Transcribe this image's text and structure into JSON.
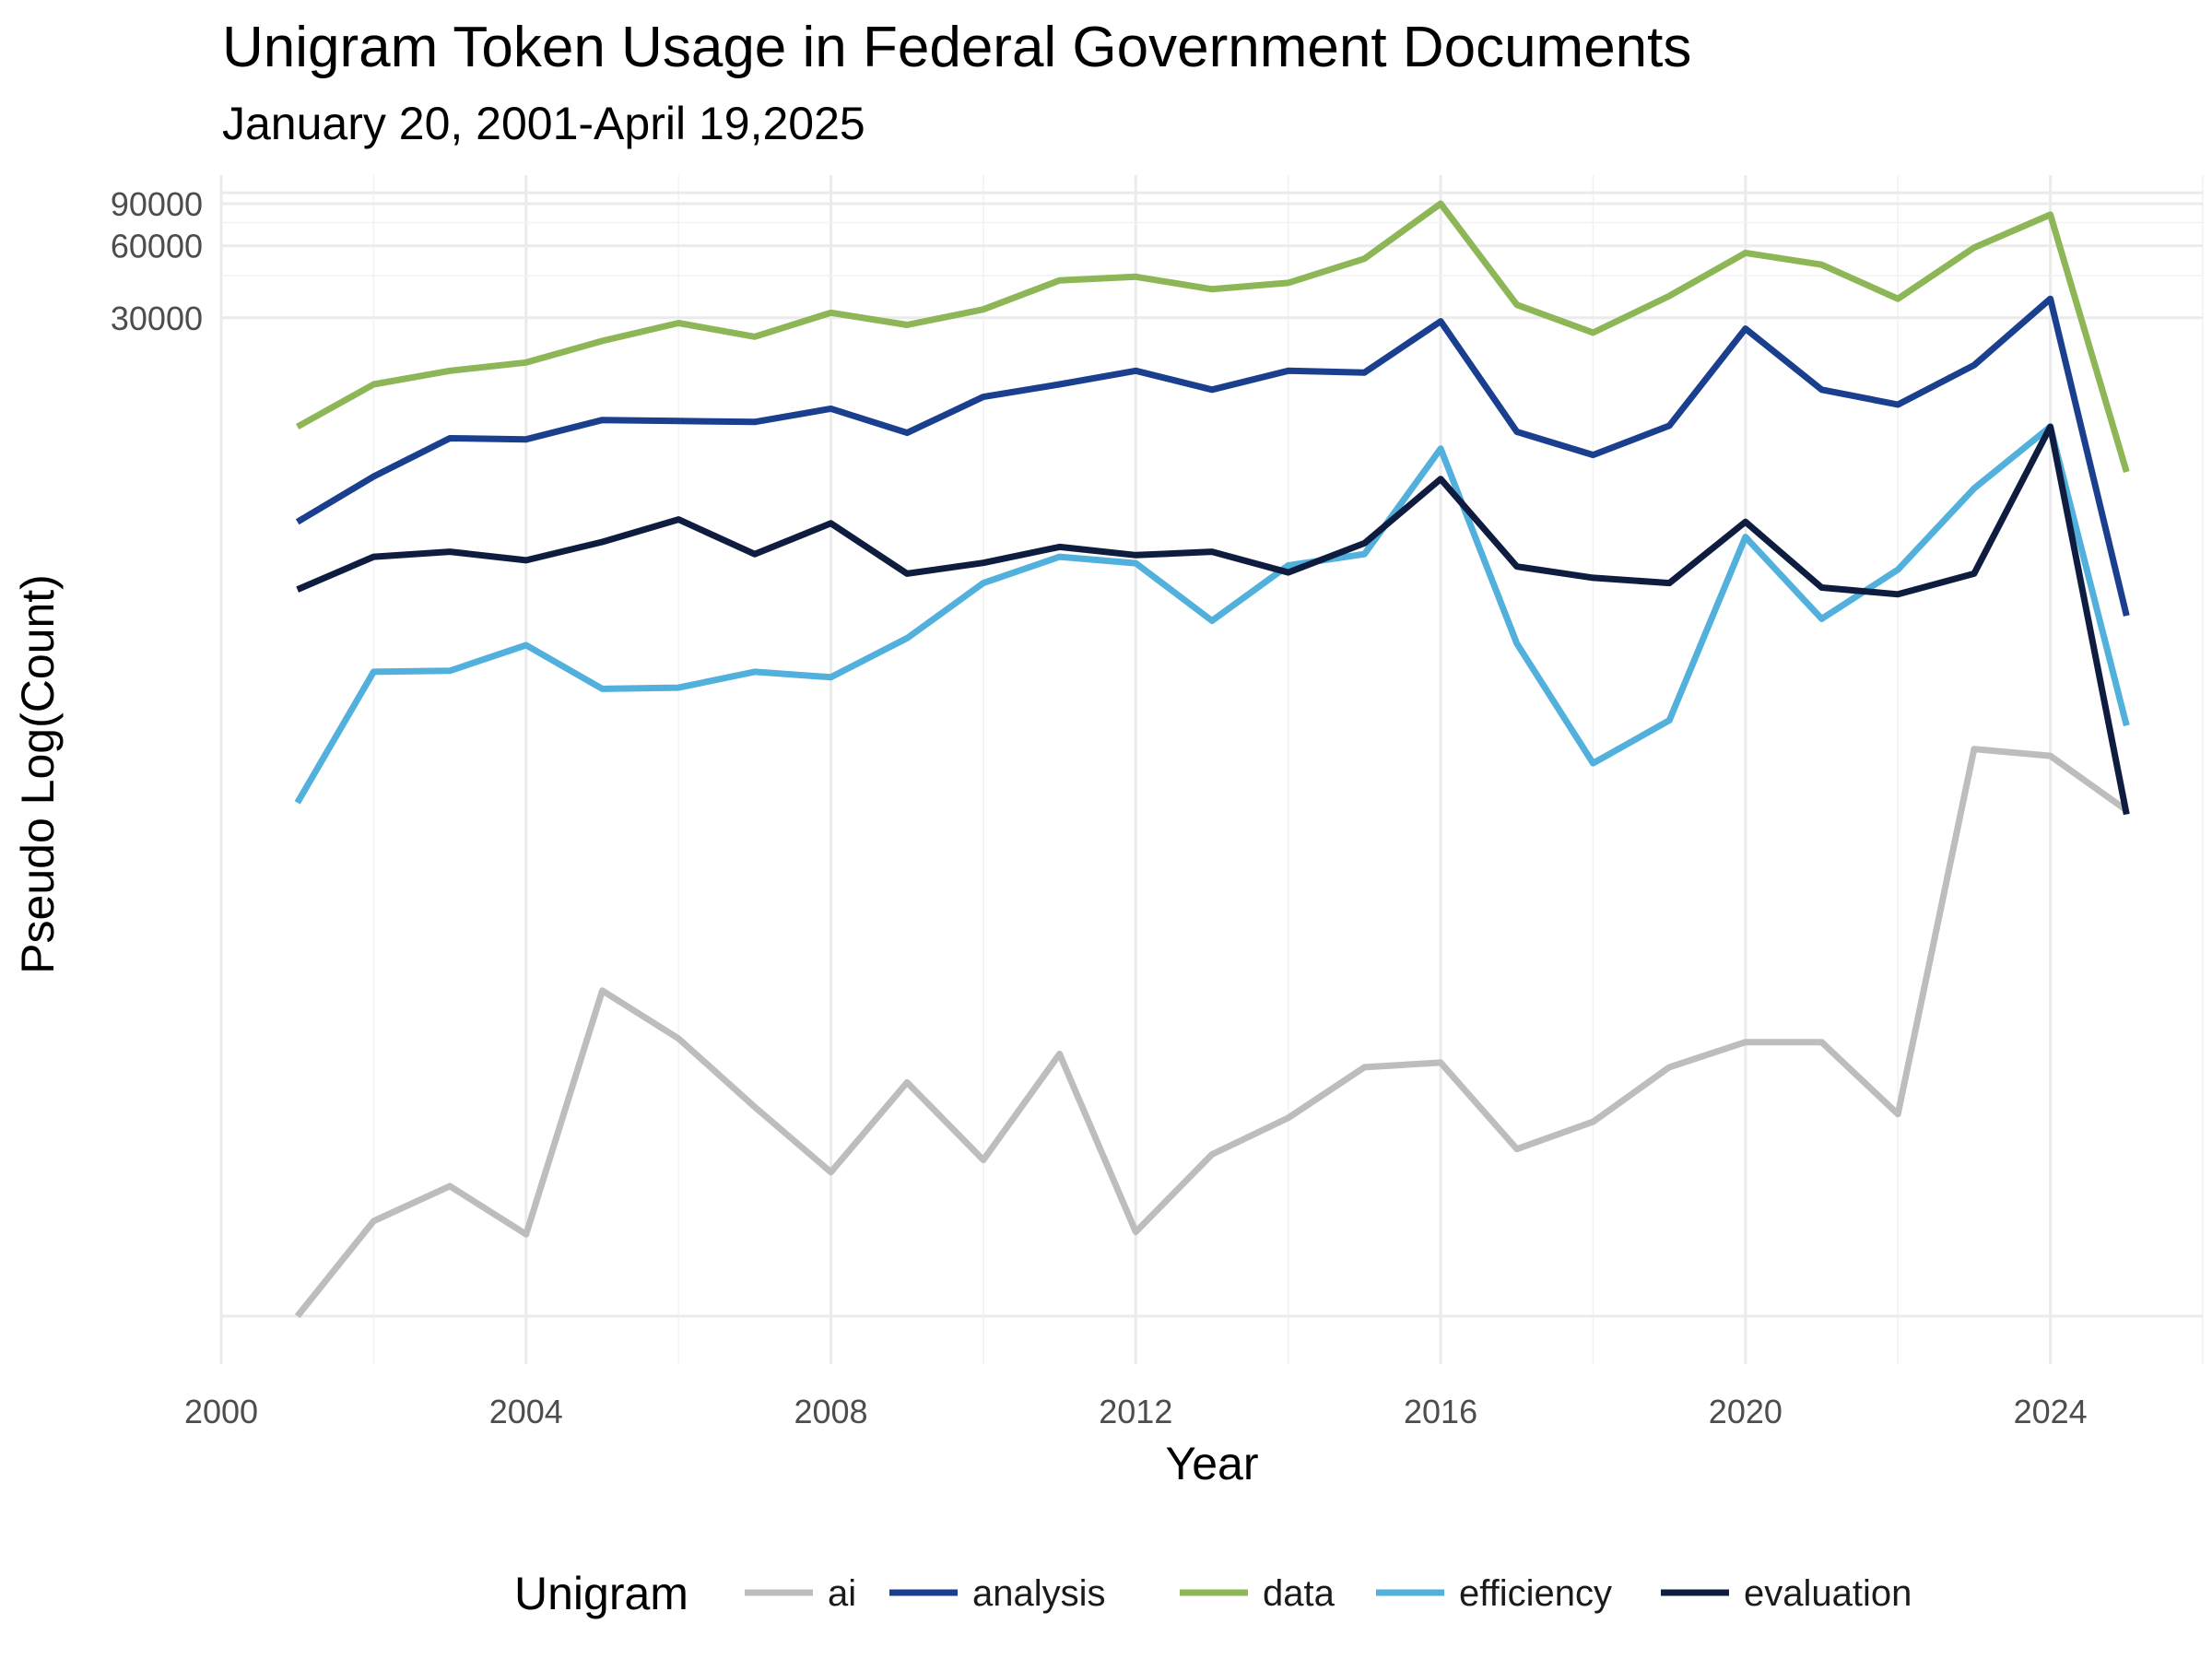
{
  "chart_data": {
    "type": "line",
    "title": "Unigram Token Usage in Federal Government Documents",
    "subtitle": "January 20, 2001-April 19,2025",
    "xlabel": "Year",
    "ylabel": "Pseudo Log(Count)",
    "y_scale": "pseudo-log",
    "x_ticks": [
      2000,
      2004,
      2008,
      2012,
      2016,
      2020,
      2024
    ],
    "xlim": [
      2000,
      2026
    ],
    "y_ticks": [
      90000,
      60000,
      30000
    ],
    "grid": true,
    "legend_position": "bottom",
    "legend_title": "Unigram",
    "x": [
      2001,
      2002,
      2003,
      2004,
      2005,
      2006,
      2007,
      2008,
      2009,
      2010,
      2011,
      2012,
      2013,
      2014,
      2015,
      2016,
      2017,
      2018,
      2019,
      2020,
      2021,
      2022,
      2023,
      2024,
      2025
    ],
    "series": [
      {
        "name": "ai",
        "color": "#bdbdbd",
        "values": [
          1,
          4,
          6,
          3.4,
          45,
          28,
          14,
          7,
          18,
          8,
          24,
          3.5,
          8.5,
          12.5,
          21,
          22,
          9,
          12,
          21,
          27,
          27,
          13,
          470,
          440,
          260
        ]
      },
      {
        "name": "analysis",
        "color": "#1a3f8f",
        "values": [
          4200,
          6500,
          9400,
          9300,
          11200,
          11100,
          11000,
          12500,
          9900,
          14000,
          15800,
          18000,
          15000,
          18000,
          17700,
          29000,
          10000,
          8000,
          10600,
          27000,
          15000,
          13000,
          19000,
          36000,
          1700
        ]
      },
      {
        "name": "data",
        "color": "#8db656",
        "values": [
          10500,
          15800,
          18000,
          19500,
          24000,
          28500,
          25000,
          31500,
          28000,
          32500,
          43000,
          44500,
          39500,
          42000,
          53000,
          90000,
          34000,
          26000,
          37000,
          56000,
          50000,
          36000,
          59000,
          81000,
          6800
        ]
      },
      {
        "name": "efficiency",
        "color": "#52b0dd",
        "values": [
          280,
          990,
          1000,
          1280,
          840,
          850,
          990,
          940,
          1370,
          2330,
          3000,
          2820,
          1620,
          2760,
          3080,
          8500,
          1300,
          410,
          620,
          3630,
          1650,
          2650,
          5800,
          10500,
          590
        ]
      },
      {
        "name": "evaluation",
        "color": "#0e1d3f",
        "values": [
          2190,
          3000,
          3150,
          2900,
          3460,
          4300,
          3080,
          4140,
          2550,
          2830,
          3300,
          3050,
          3150,
          2580,
          3420,
          6350,
          2730,
          2450,
          2330,
          4200,
          2230,
          2090,
          2550,
          10500,
          250
        ]
      }
    ]
  }
}
